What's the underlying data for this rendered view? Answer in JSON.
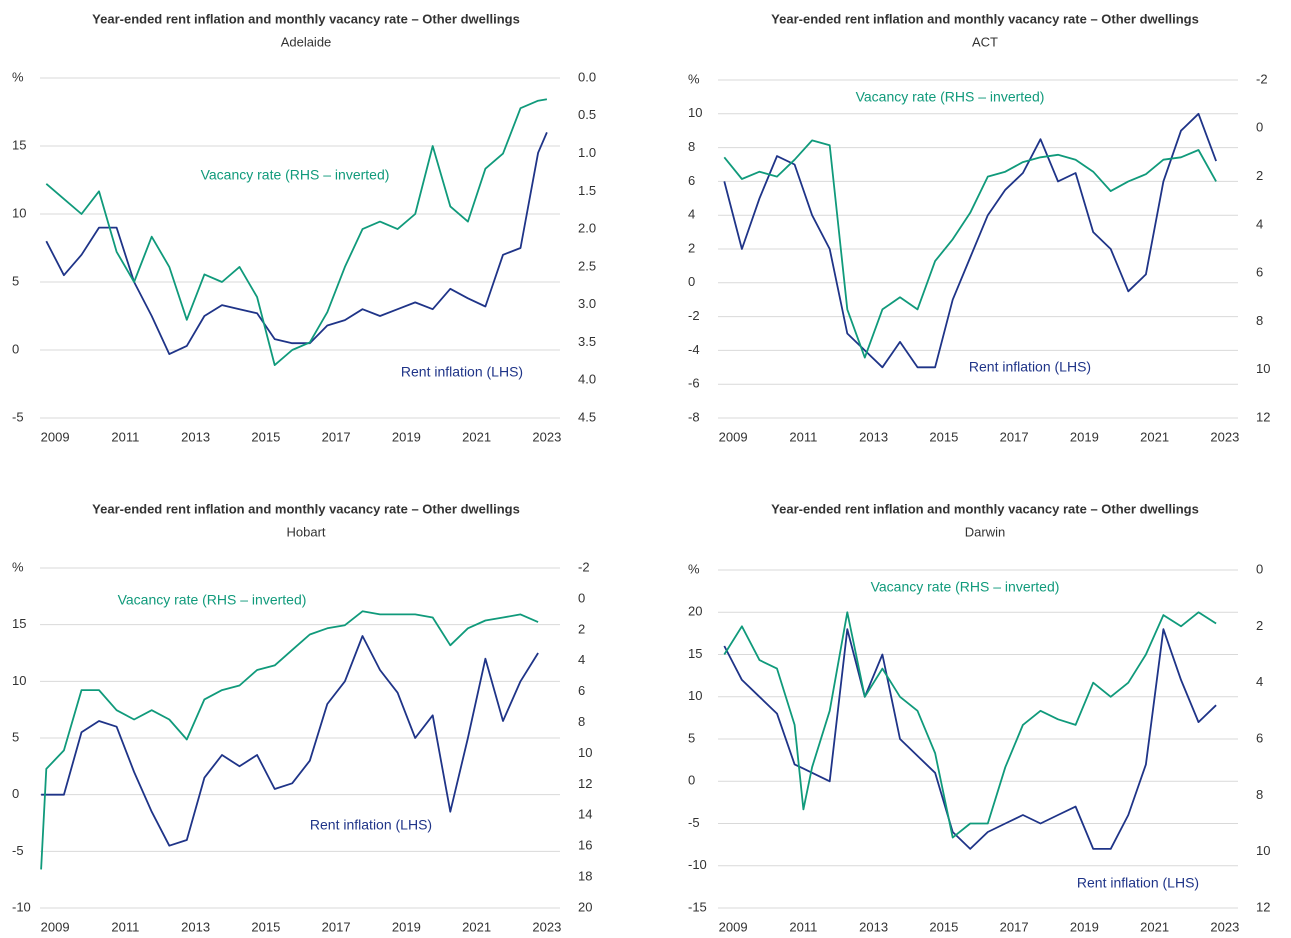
{
  "chart_data": [
    {
      "type": "line",
      "title": "Year-ended rent inflation and monthly vacancy rate – Other dwellings",
      "subtitle": "Adelaide",
      "y_label": "%",
      "x": [
        2008.75,
        2009.25,
        2009.75,
        2010.25,
        2010.75,
        2011.25,
        2011.75,
        2012.25,
        2012.75,
        2013.25,
        2013.75,
        2014.25,
        2014.75,
        2015.25,
        2015.75,
        2016.25,
        2016.75,
        2017.25,
        2017.75,
        2018.25,
        2018.75,
        2019.25,
        2019.75,
        2020.25,
        2020.75,
        2021.25,
        2021.75,
        2022.25,
        2022.75,
        2023.0
      ],
      "xlim": [
        2008.57,
        2023.43
      ],
      "xticks": [
        2009,
        2011,
        2013,
        2015,
        2017,
        2019,
        2021,
        2023
      ],
      "ylim": [
        -5,
        20
      ],
      "yticks": [
        -5,
        0,
        5,
        10,
        15
      ],
      "y2lim": [
        0,
        4.5
      ],
      "y2_inverted": true,
      "y2ticks": [
        {
          "value": 0,
          "label": "0.0"
        },
        0.5,
        {
          "value": 1,
          "label": "1.0"
        },
        1.5,
        {
          "value": 2,
          "label": "2.0"
        },
        2.5,
        {
          "value": 3,
          "label": "3.0"
        },
        3.5,
        {
          "value": 4,
          "label": "4.0"
        },
        4.5
      ],
      "grid": true,
      "series": [
        {
          "name": "Rent inflation (LHS)",
          "color": "#1f3488",
          "values": [
            8,
            5.5,
            7,
            9,
            9,
            5,
            2.5,
            -0.3,
            0.3,
            2.5,
            3.3,
            3,
            2.7,
            0.8,
            0.5,
            0.5,
            1.8,
            2.2,
            3,
            2.5,
            3,
            3.5,
            3,
            4.5,
            3.8,
            3.2,
            7,
            7.5,
            14.5,
            16
          ]
        },
        {
          "name": "Vacancy rate (RHS – inverted)",
          "color": "#109a7b",
          "axis": "y2",
          "values": [
            1.4,
            1.6,
            1.8,
            1.5,
            2.3,
            2.7,
            2.1,
            2.5,
            3.2,
            2.6,
            2.7,
            2.5,
            2.9,
            3.8,
            3.6,
            3.5,
            3.1,
            2.5,
            2.0,
            1.9,
            2.0,
            1.8,
            0.9,
            1.7,
            1.9,
            1.2,
            1.0,
            0.4,
            0.3,
            0.28
          ]
        }
      ]
    },
    {
      "type": "line",
      "title": "Year-ended rent inflation and monthly vacancy rate – Other dwellings",
      "subtitle": "ACT",
      "y_label": "%",
      "x": [
        2008.75,
        2009.25,
        2009.75,
        2010.25,
        2010.75,
        2011.25,
        2011.75,
        2012.25,
        2012.75,
        2013.25,
        2013.75,
        2014.25,
        2014.75,
        2015.25,
        2015.75,
        2016.25,
        2016.75,
        2017.25,
        2017.75,
        2018.25,
        2018.75,
        2019.25,
        2019.75,
        2020.25,
        2020.75,
        2021.25,
        2021.75,
        2022.25,
        2022.75
      ],
      "xlim": [
        2008.57,
        2023.43
      ],
      "xticks": [
        2009,
        2011,
        2013,
        2015,
        2017,
        2019,
        2021,
        2023
      ],
      "ylim": [
        -8,
        12
      ],
      "yticks": [
        -8,
        -6,
        -4,
        -2,
        0,
        2,
        4,
        6,
        8,
        10
      ],
      "y2lim": [
        -2,
        12
      ],
      "y2_inverted": true,
      "y2ticks": [
        -2,
        0,
        2,
        4,
        6,
        8,
        10,
        12
      ],
      "grid": true,
      "series": [
        {
          "name": "Rent inflation (LHS)",
          "color": "#1f3488",
          "values": [
            6,
            2,
            5,
            7.5,
            7,
            4,
            2,
            -3,
            -4,
            -5,
            -3.5,
            -5,
            -5,
            -1,
            1.5,
            4,
            5.5,
            6.5,
            8.5,
            6,
            6.5,
            3,
            2,
            -0.5,
            0.5,
            6,
            9,
            10,
            7.2
          ]
        },
        {
          "name": "Vacancy rate (RHS – inverted)",
          "color": "#109a7b",
          "axis": "y2",
          "values": [
            1.2,
            2.1,
            1.8,
            2.0,
            1.3,
            0.5,
            0.7,
            7.5,
            9.5,
            7.5,
            7.0,
            7.5,
            5.5,
            4.6,
            3.5,
            2.0,
            1.8,
            1.4,
            1.2,
            1.1,
            1.3,
            1.8,
            2.6,
            2.2,
            1.9,
            1.3,
            1.2,
            0.9,
            2.2
          ]
        }
      ]
    },
    {
      "type": "line",
      "title": "Year-ended rent inflation and monthly vacancy rate – Other dwellings",
      "subtitle": "Hobart",
      "y_label": "%",
      "x": [
        2008.6,
        2008.75,
        2009.25,
        2009.75,
        2010.25,
        2010.75,
        2011.25,
        2011.75,
        2012.25,
        2012.75,
        2013.25,
        2013.75,
        2014.25,
        2014.75,
        2015.25,
        2015.75,
        2016.25,
        2016.75,
        2017.25,
        2017.75,
        2018.25,
        2018.75,
        2019.25,
        2019.75,
        2020.25,
        2020.75,
        2021.25,
        2021.75,
        2022.25,
        2022.75
      ],
      "xlim": [
        2008.57,
        2023.43
      ],
      "xticks": [
        2009,
        2011,
        2013,
        2015,
        2017,
        2019,
        2021,
        2023
      ],
      "ylim": [
        -10,
        20
      ],
      "yticks": [
        -10,
        -5,
        0,
        5,
        10,
        15
      ],
      "y2lim": [
        -2,
        20
      ],
      "y2_inverted": true,
      "y2ticks": [
        -2,
        0,
        2,
        4,
        6,
        8,
        10,
        12,
        14,
        16,
        18,
        20
      ],
      "grid": true,
      "series": [
        {
          "name": "Rent inflation (LHS)",
          "color": "#1f3488",
          "values": [
            0,
            0,
            0,
            5.5,
            6.5,
            6,
            2,
            -1.5,
            -4.5,
            -4,
            1.5,
            3.5,
            2.5,
            3.5,
            0.5,
            1,
            3,
            8,
            10,
            14,
            11,
            9,
            5,
            7,
            -1.5,
            5,
            12,
            6.5,
            10,
            12.5
          ]
        },
        {
          "name": "Vacancy rate (RHS – inverted)",
          "color": "#109a7b",
          "axis": "y2",
          "values": [
            17.5,
            11,
            9.8,
            5.9,
            5.9,
            7.2,
            7.8,
            7.2,
            7.8,
            9.1,
            6.5,
            5.9,
            5.6,
            4.6,
            4.3,
            3.3,
            2.3,
            1.9,
            1.7,
            0.8,
            1.0,
            1.0,
            1.0,
            1.2,
            3.0,
            1.9,
            1.4,
            1.2,
            1.0,
            1.5
          ]
        }
      ]
    },
    {
      "type": "line",
      "title": "Year-ended rent inflation and monthly vacancy rate – Other dwellings",
      "subtitle": "Darwin",
      "y_label": "%",
      "x": [
        2008.75,
        2009.25,
        2009.75,
        2010.25,
        2010.75,
        2011.0,
        2011.25,
        2011.75,
        2012.25,
        2012.75,
        2013.25,
        2013.75,
        2014.25,
        2014.75,
        2015.25,
        2015.75,
        2016.25,
        2016.75,
        2017.25,
        2017.75,
        2018.25,
        2018.75,
        2019.25,
        2019.75,
        2020.25,
        2020.75,
        2021.25,
        2021.75,
        2022.25,
        2022.75
      ],
      "xlim": [
        2008.57,
        2023.43
      ],
      "xticks": [
        2009,
        2011,
        2013,
        2015,
        2017,
        2019,
        2021,
        2023
      ],
      "ylim": [
        -15,
        25
      ],
      "yticks": [
        -15,
        -10,
        -5,
        0,
        5,
        10,
        15,
        20
      ],
      "y2lim": [
        0,
        12
      ],
      "y2_inverted": true,
      "y2ticks": [
        0,
        2,
        4,
        6,
        8,
        10,
        12
      ],
      "grid": true,
      "series": [
        {
          "name": "Rent inflation (LHS)",
          "color": "#1f3488",
          "values": [
            16,
            12,
            10,
            8,
            2,
            1.5,
            1,
            0,
            18,
            10,
            15,
            5,
            3,
            1,
            -6,
            -8,
            -6,
            -5,
            -4,
            -5,
            -4,
            -3,
            -8,
            -8,
            -4,
            2,
            18,
            12,
            7,
            9
          ]
        },
        {
          "name": "Vacancy rate (RHS – inverted)",
          "color": "#109a7b",
          "axis": "y2",
          "values": [
            3.0,
            2.0,
            3.2,
            3.5,
            5.5,
            8.5,
            7.0,
            5.0,
            1.5,
            4.5,
            3.5,
            4.5,
            5.0,
            6.5,
            9.5,
            9.0,
            9.0,
            7.0,
            5.5,
            5.0,
            5.3,
            5.5,
            4.0,
            4.5,
            4.0,
            3.0,
            1.6,
            2.0,
            1.5,
            1.9
          ]
        }
      ]
    }
  ]
}
